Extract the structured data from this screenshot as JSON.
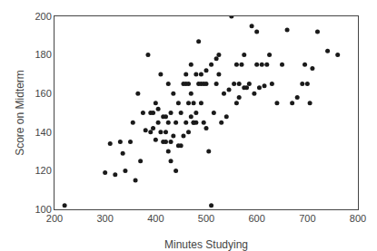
{
  "chart_data": {
    "type": "scatter",
    "xlabel": "Minutes Studying",
    "ylabel": "Score on Midterm",
    "x": [
      220,
      300,
      310,
      320,
      330,
      335,
      340,
      350,
      355,
      360,
      365,
      370,
      375,
      380,
      385,
      390,
      390,
      395,
      395,
      400,
      400,
      405,
      405,
      410,
      410,
      415,
      415,
      420,
      420,
      420,
      425,
      425,
      425,
      430,
      430,
      430,
      435,
      435,
      440,
      440,
      445,
      445,
      450,
      450,
      455,
      455,
      460,
      460,
      460,
      465,
      465,
      465,
      470,
      470,
      470,
      475,
      475,
      475,
      480,
      480,
      480,
      485,
      485,
      490,
      490,
      490,
      495,
      495,
      500,
      500,
      500,
      505,
      510,
      510,
      515,
      520,
      520,
      525,
      525,
      530,
      535,
      540,
      545,
      550,
      555,
      560,
      560,
      565,
      565,
      570,
      575,
      575,
      580,
      585,
      590,
      595,
      600,
      600,
      605,
      610,
      615,
      620,
      625,
      630,
      640,
      650,
      660,
      670,
      680,
      690,
      695,
      700,
      705,
      710,
      720,
      740,
      760
    ],
    "values": [
      102,
      119,
      134,
      118,
      135,
      129,
      120,
      135,
      145,
      115,
      160,
      125,
      150,
      141,
      180,
      140,
      150,
      150,
      142,
      136,
      155,
      145,
      152,
      140,
      170,
      135,
      148,
      135,
      148,
      140,
      130,
      145,
      165,
      135,
      150,
      125,
      138,
      160,
      120,
      145,
      155,
      133,
      133,
      150,
      138,
      165,
      145,
      170,
      165,
      155,
      165,
      140,
      148,
      160,
      175,
      145,
      155,
      145,
      170,
      150,
      145,
      165,
      187,
      165,
      170,
      155,
      165,
      145,
      142,
      165,
      172,
      130,
      102,
      175,
      150,
      178,
      165,
      170,
      180,
      145,
      160,
      148,
      162,
      200,
      165,
      155,
      175,
      165,
      158,
      175,
      163,
      180,
      163,
      165,
      195,
      160,
      175,
      192,
      163,
      175,
      164,
      175,
      180,
      165,
      155,
      175,
      193,
      155,
      158,
      165,
      175,
      165,
      155,
      173,
      192,
      182,
      180
    ],
    "xlim": [
      200,
      800
    ],
    "ylim": [
      100,
      200
    ],
    "xticks": [
      200,
      300,
      400,
      500,
      600,
      700,
      800
    ],
    "yticks": [
      100,
      120,
      140,
      160,
      180,
      200
    ],
    "color": "#1a1a1a",
    "marker": "circle",
    "grid": false
  }
}
